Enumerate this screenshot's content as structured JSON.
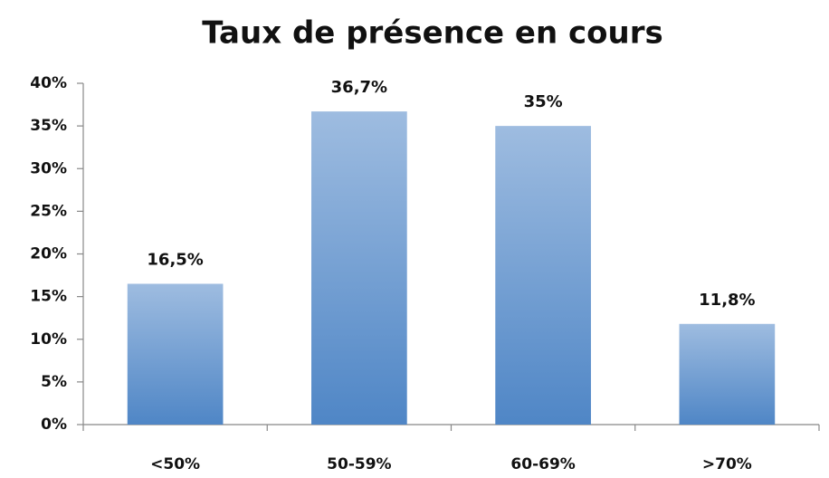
{
  "chart_data": {
    "type": "bar",
    "title": "Taux de présence en cours",
    "categories": [
      "<50%",
      "50-59%",
      "60-69%",
      ">70%"
    ],
    "values": [
      16.5,
      36.7,
      35,
      11.8
    ],
    "value_labels": [
      "16,5%",
      "36,7%",
      "35%",
      "11,8%"
    ],
    "color": "#4f86c6",
    "ylim": [
      0,
      40
    ],
    "yticks": [
      {
        "value": 0,
        "label": "0%"
      },
      {
        "value": 5,
        "label": "5%"
      },
      {
        "value": 10,
        "label": "10%"
      },
      {
        "value": 15,
        "label": "15%"
      },
      {
        "value": 20,
        "label": "20%"
      },
      {
        "value": 25,
        "label": "25%"
      },
      {
        "value": 30,
        "label": "30%"
      },
      {
        "value": 35,
        "label": "35%"
      },
      {
        "value": 40,
        "label": "40%"
      }
    ],
    "grid": false
  }
}
